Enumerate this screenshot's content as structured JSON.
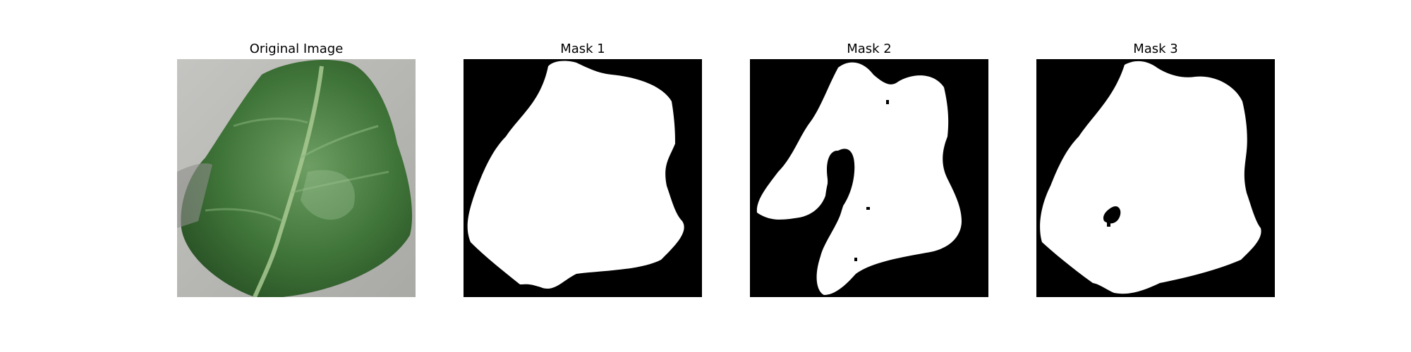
{
  "figure": {
    "panels": [
      {
        "title": "Original Image",
        "kind": "photo"
      },
      {
        "title": "Mask 1",
        "kind": "mask"
      },
      {
        "title": "Mask 2",
        "kind": "mask"
      },
      {
        "title": "Mask 3",
        "kind": "mask"
      }
    ]
  },
  "colors": {
    "background": "#ffffff",
    "mask_foreground": "#ffffff",
    "mask_background": "#000000",
    "leaf_dark": "#2f5e2a",
    "leaf_mid": "#4d8a45",
    "leaf_light": "#7fb173",
    "photo_background": "#b7b7b3"
  }
}
